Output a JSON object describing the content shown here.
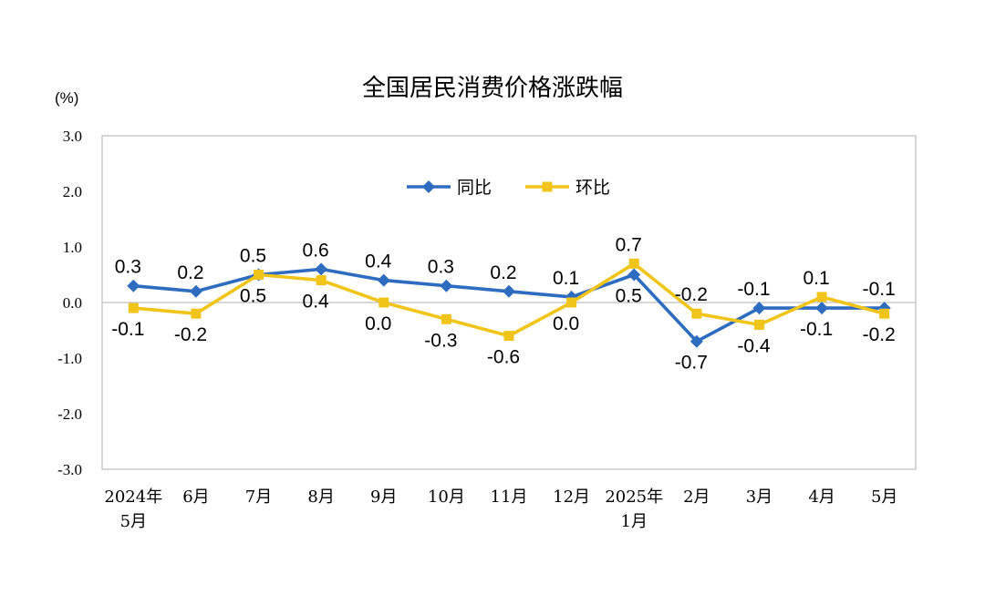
{
  "chart_data": {
    "type": "line",
    "title": "全国居民消费价格涨跌幅",
    "unit_label": "(%)",
    "categories": [
      [
        "2024年",
        "5月"
      ],
      [
        "6月"
      ],
      [
        "7月"
      ],
      [
        "8月"
      ],
      [
        "9月"
      ],
      [
        "10月"
      ],
      [
        "11月"
      ],
      [
        "12月"
      ],
      [
        "2025年",
        "1月"
      ],
      [
        "2月"
      ],
      [
        "3月"
      ],
      [
        "4月"
      ],
      [
        "5月"
      ]
    ],
    "ylim": [
      -3.0,
      3.0
    ],
    "yticks": [
      "3.0",
      "2.0",
      "1.0",
      "0.0",
      "-1.0",
      "-2.0",
      "-3.0"
    ],
    "series": [
      {
        "name": "同比",
        "color": "#2e6cc0",
        "marker": "diamond",
        "values": [
          0.3,
          0.2,
          0.5,
          0.6,
          0.4,
          0.3,
          0.2,
          0.1,
          0.5,
          -0.7,
          -0.1,
          -0.1,
          -0.1
        ],
        "labels": [
          "0.3",
          "0.2",
          "0.5",
          "0.6",
          "0.4",
          "0.3",
          "0.2",
          "0.1",
          "0.5",
          "-0.7",
          "-0.1",
          "-0.1",
          "-0.1"
        ]
      },
      {
        "name": "环比",
        "color": "#f0c419",
        "marker": "square",
        "values": [
          -0.1,
          -0.2,
          0.5,
          0.4,
          0.0,
          -0.3,
          -0.6,
          0.0,
          0.7,
          -0.2,
          -0.4,
          0.1,
          -0.2
        ],
        "labels": [
          "-0.1",
          "-0.2",
          "0.5",
          "0.4",
          "0.0",
          "-0.3",
          "-0.6",
          "0.0",
          "0.7",
          "-0.2",
          "-0.4",
          "0.1",
          "-0.2"
        ]
      }
    ],
    "legend": "top-center",
    "grid": false
  }
}
